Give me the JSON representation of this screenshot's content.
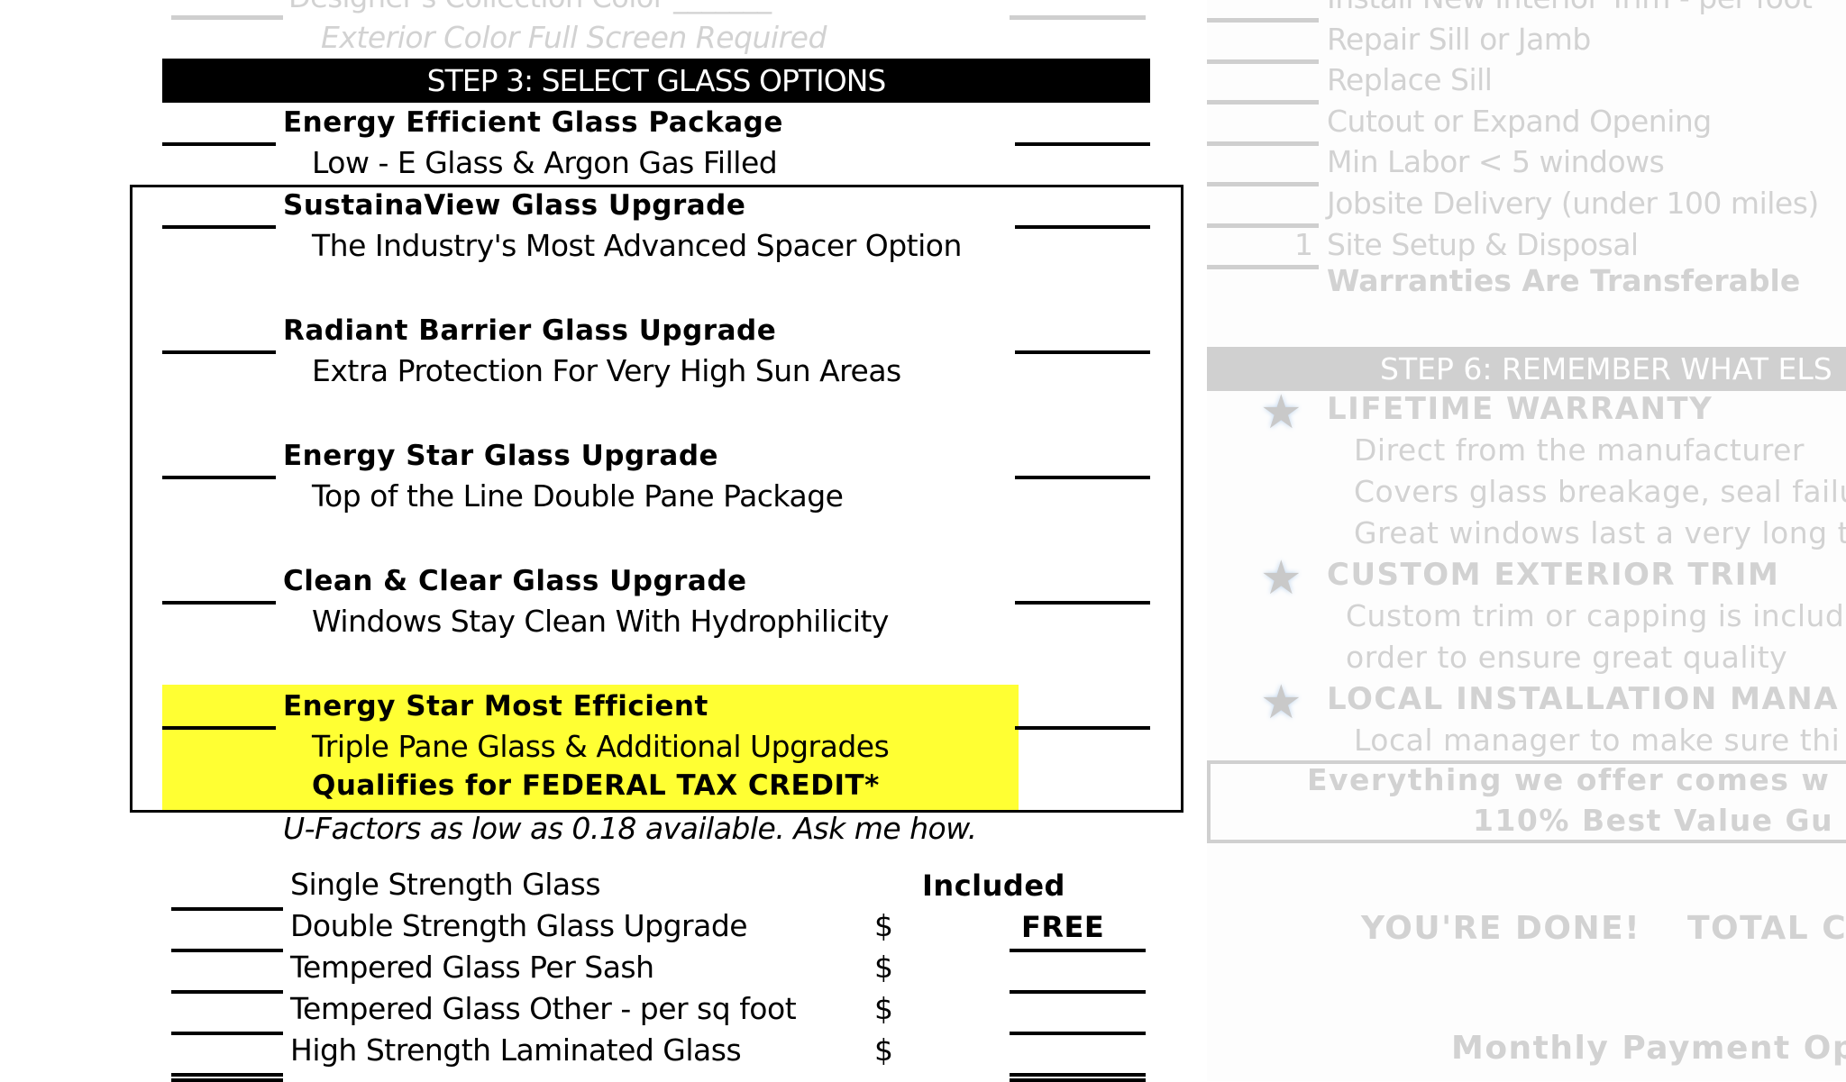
{
  "top_faded": {
    "designer_color": "Designer's Collection Color _______",
    "exterior_note": "Exterior Color Full Screen Required"
  },
  "step3": {
    "header": "STEP 3: SELECT GLASS OPTIONS",
    "packages": [
      {
        "title": "Energy Efficient Glass Package",
        "subtitle": "Low - E Glass  &   Argon Gas Filled"
      },
      {
        "title": "SustainaView Glass Upgrade",
        "subtitle": "The Industry's Most Advanced Spacer Option"
      },
      {
        "title": "Radiant Barrier Glass Upgrade",
        "subtitle": "Extra Protection For Very High Sun Areas"
      },
      {
        "title": "Energy Star Glass Upgrade",
        "subtitle": "Top of the Line Double Pane Package"
      },
      {
        "title": "Clean & Clear Glass Upgrade",
        "subtitle": "Windows Stay Clean With Hydrophilicity"
      },
      {
        "title": "Energy Star Most Efficient",
        "subtitle": "Triple Pane Glass & Additional Upgrades",
        "note": "Qualifies for FEDERAL TAX CREDIT*",
        "highlight": "#ffff33"
      }
    ],
    "ufactor_note": "U-Factors as low as 0.18 available.  Ask me how.",
    "options": [
      {
        "label": "Single Strength Glass",
        "currency": "",
        "price": "Included"
      },
      {
        "label": "Double Strength Glass Upgrade",
        "currency": "$",
        "price": "FREE"
      },
      {
        "label": "Tempered Glass Per Sash",
        "currency": "$",
        "price": ""
      },
      {
        "label": "Tempered Glass Other - per sq foot",
        "currency": "$",
        "price": ""
      },
      {
        "label": "High Strength Laminated Glass",
        "currency": "$",
        "price": ""
      }
    ]
  },
  "right_faded": {
    "items": [
      {
        "qty": "",
        "label": "Install New Interior Trim - per foot"
      },
      {
        "qty": "",
        "label": "Repair Sill or Jamb"
      },
      {
        "qty": "",
        "label": "Replace Sill"
      },
      {
        "qty": "",
        "label": "Cutout or Expand Opening"
      },
      {
        "qty": "",
        "label": "Min Labor < 5 windows"
      },
      {
        "qty": "",
        "label": "Jobsite Delivery (under 100 miles)"
      },
      {
        "qty": "1",
        "label": "Site Setup & Disposal"
      }
    ],
    "warranty_note": "Warranties Are Transferable",
    "step6_header": "STEP 6: REMEMBER WHAT ELS",
    "features": [
      {
        "title": "LIFETIME WARRANTY",
        "lines": [
          "Direct from the manufacturer",
          "Covers glass breakage, seal failu",
          "Great windows last a very long t"
        ]
      },
      {
        "title": "CUSTOM EXTERIOR TRIM",
        "lines": [
          "Custom trim or capping is includ",
          "order to ensure great quality"
        ]
      },
      {
        "title": "LOCAL INSTALLATION MANA",
        "lines": [
          "Local manager to make sure thi"
        ]
      }
    ],
    "guarantee": [
      "Everything we offer comes w",
      "110% Best Value Gu"
    ],
    "done": "YOU'RE DONE!",
    "total": "TOTAL C",
    "monthly": "Monthly Payment Op"
  }
}
